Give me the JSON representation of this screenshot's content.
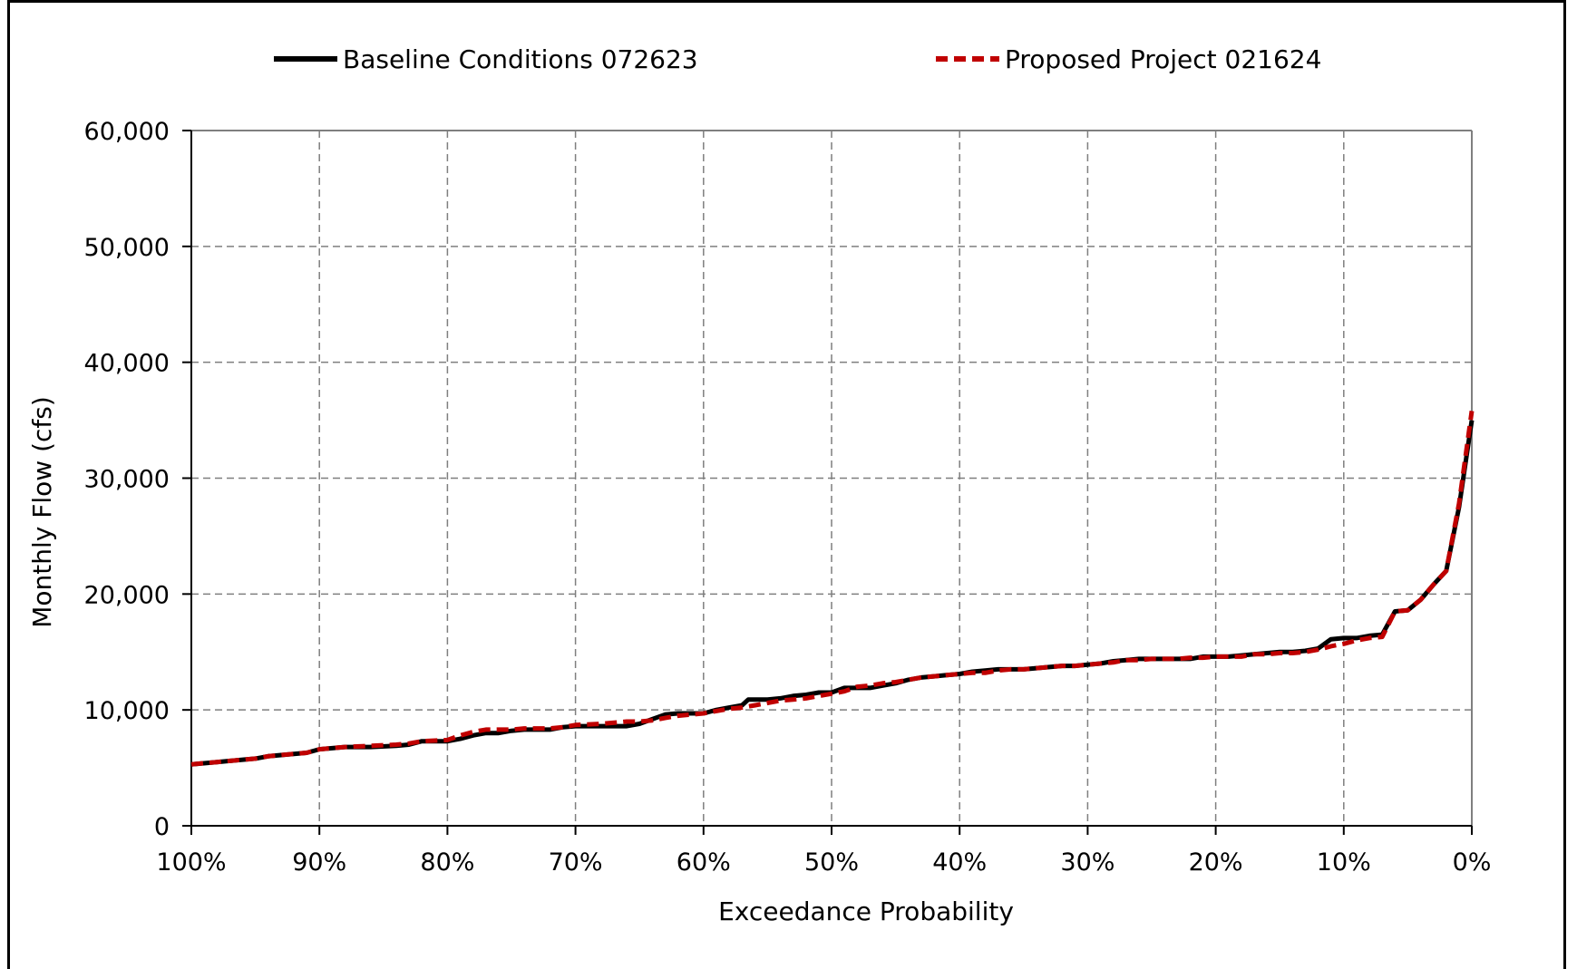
{
  "chart_data": {
    "type": "line",
    "title": "",
    "xlabel": "Exceedance Probability",
    "ylabel": "Monthly Flow (cfs)",
    "x_reversed": true,
    "xlim": [
      0,
      100
    ],
    "ylim": [
      0,
      60000
    ],
    "x_ticks": [
      100,
      90,
      80,
      70,
      60,
      50,
      40,
      30,
      20,
      10,
      0
    ],
    "x_tick_labels": [
      "100%",
      "90%",
      "80%",
      "70%",
      "60%",
      "50%",
      "40%",
      "30%",
      "20%",
      "10%",
      "0%"
    ],
    "y_ticks": [
      0,
      10000,
      20000,
      30000,
      40000,
      50000,
      60000
    ],
    "y_tick_labels": [
      "0",
      "10,000",
      "20,000",
      "30,000",
      "40,000",
      "50,000",
      "60,000"
    ],
    "grid": true,
    "legend_position": "top",
    "series": [
      {
        "name": "Baseline Conditions 072623",
        "color": "#000000",
        "style": "solid",
        "x": [
          100,
          98,
          96,
          95,
          94,
          92,
          91,
          90,
          88,
          86,
          84,
          83,
          82,
          80,
          79,
          78,
          77,
          76,
          75,
          74,
          72,
          71,
          70,
          68,
          66,
          65,
          64,
          63,
          62,
          61,
          60,
          59,
          58,
          57,
          56.5,
          56,
          55,
          54,
          53,
          52,
          51,
          50,
          49,
          48,
          47,
          46,
          45,
          44,
          43,
          42,
          41,
          40,
          39,
          38,
          37,
          36,
          35,
          34,
          33,
          32,
          31,
          30,
          29,
          28,
          27,
          26,
          25,
          24,
          23,
          22,
          21,
          20,
          19,
          18,
          17,
          16,
          15,
          14,
          13,
          12,
          11,
          10,
          9,
          8,
          7,
          6,
          5,
          4,
          3,
          2,
          1,
          0
        ],
        "y": [
          5300,
          5500,
          5700,
          5800,
          6000,
          6200,
          6300,
          6600,
          6800,
          6800,
          6900,
          7000,
          7300,
          7300,
          7500,
          7800,
          8000,
          8000,
          8200,
          8300,
          8300,
          8500,
          8600,
          8600,
          8600,
          8800,
          9200,
          9600,
          9700,
          9700,
          9700,
          10000,
          10200,
          10400,
          10900,
          10900,
          10900,
          11000,
          11200,
          11300,
          11500,
          11500,
          11900,
          11900,
          11900,
          12100,
          12300,
          12600,
          12800,
          12900,
          13000,
          13100,
          13300,
          13400,
          13500,
          13500,
          13500,
          13600,
          13700,
          13800,
          13800,
          13900,
          14000,
          14200,
          14300,
          14400,
          14400,
          14400,
          14400,
          14400,
          14600,
          14600,
          14600,
          14700,
          14800,
          14900,
          15000,
          15000,
          15100,
          15300,
          16100,
          16200,
          16200,
          16400,
          16500,
          18500,
          18600,
          19500,
          20800,
          22000,
          27500,
          35000
        ]
      },
      {
        "name": "Proposed Project 021624",
        "color": "#c00000",
        "style": "dashed",
        "x": [
          100,
          98,
          96,
          95,
          94,
          92,
          91,
          90,
          88,
          86,
          84,
          83,
          82,
          80,
          79,
          78,
          77,
          76,
          75,
          74,
          72,
          71,
          70,
          68,
          66,
          65,
          64,
          63,
          62,
          61,
          60,
          59,
          58,
          57,
          56.5,
          56,
          55,
          54,
          53,
          52,
          51,
          50,
          49,
          48,
          47,
          46,
          45,
          44,
          43,
          42,
          41,
          40,
          39,
          38,
          37,
          36,
          35,
          34,
          33,
          32,
          31,
          30,
          29,
          28,
          27,
          26,
          25,
          24,
          23,
          22,
          21,
          20,
          19,
          18,
          17,
          16,
          15,
          14,
          13,
          12,
          11,
          10,
          9,
          8,
          7,
          6,
          5,
          4,
          3,
          2,
          1,
          0
        ],
        "y": [
          5300,
          5500,
          5700,
          5800,
          6000,
          6200,
          6300,
          6600,
          6800,
          6900,
          7000,
          7100,
          7300,
          7400,
          7800,
          8100,
          8300,
          8300,
          8300,
          8400,
          8400,
          8500,
          8700,
          8800,
          9000,
          9000,
          9100,
          9300,
          9500,
          9600,
          9700,
          9900,
          10100,
          10200,
          10300,
          10400,
          10600,
          10800,
          10900,
          11000,
          11200,
          11400,
          11600,
          12000,
          12100,
          12300,
          12400,
          12600,
          12800,
          12900,
          13000,
          13100,
          13200,
          13200,
          13400,
          13500,
          13500,
          13600,
          13700,
          13800,
          13800,
          13900,
          14000,
          14100,
          14300,
          14300,
          14400,
          14400,
          14400,
          14500,
          14500,
          14600,
          14600,
          14600,
          14800,
          14800,
          14900,
          14900,
          15000,
          15200,
          15500,
          15700,
          16000,
          16200,
          16300,
          18500,
          18600,
          19500,
          20800,
          22000,
          27800,
          35800
        ]
      }
    ]
  }
}
